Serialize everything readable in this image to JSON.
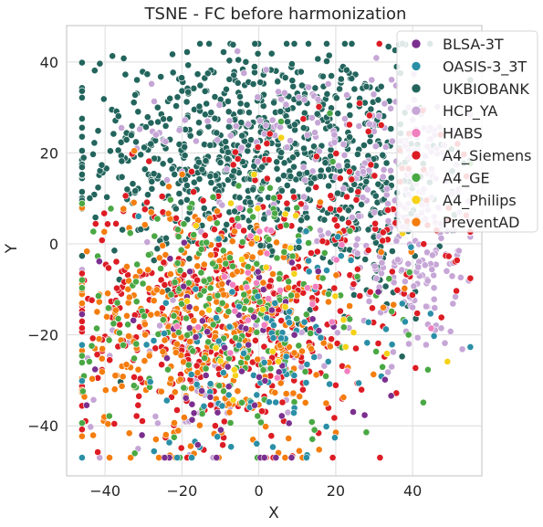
{
  "chart_data": {
    "type": "scatter",
    "title": "TSNE - FC before harmonization",
    "xlabel": "X",
    "ylabel": "Y",
    "xlim": [
      -50,
      58
    ],
    "ylim": [
      -51,
      48
    ],
    "xticks": [
      -40,
      -20,
      0,
      20,
      40
    ],
    "yticks": [
      -40,
      -20,
      0,
      20,
      40
    ],
    "xtick_labels": [
      "−40",
      "−20",
      "0",
      "20",
      "40"
    ],
    "ytick_labels": [
      "−40",
      "−20",
      "0",
      "20",
      "40"
    ],
    "grid": true,
    "legend_position": "top-right",
    "series": [
      {
        "name": "BLSA-3T",
        "color": "#7b2f8e",
        "count": 70,
        "clusters": [
          {
            "cx": -5,
            "cy": -25,
            "sx": 18,
            "sy": 12,
            "w": 1
          }
        ]
      },
      {
        "name": "OASIS-3_3T",
        "color": "#2a8fa6",
        "count": 110,
        "clusters": [
          {
            "cx": 0,
            "cy": -25,
            "sx": 20,
            "sy": 13,
            "w": 1
          }
        ]
      },
      {
        "name": "UKBIOBANK",
        "color": "#23655d",
        "count": 900,
        "clusters": [
          {
            "cx": -5,
            "cy": 20,
            "sx": 20,
            "sy": 12,
            "w": 0.78
          },
          {
            "cx": 28,
            "cy": 12,
            "sx": 10,
            "sy": 14,
            "w": 0.22
          }
        ]
      },
      {
        "name": "HCP_YA",
        "color": "#c6a6d6",
        "count": 420,
        "clusters": [
          {
            "cx": 40,
            "cy": 5,
            "sx": 9,
            "sy": 15,
            "w": 0.6
          },
          {
            "cx": 5,
            "cy": 25,
            "sx": 18,
            "sy": 8,
            "w": 0.22
          },
          {
            "cx": -10,
            "cy": -25,
            "sx": 18,
            "sy": 12,
            "w": 0.18
          }
        ]
      },
      {
        "name": "HABS",
        "color": "#f07fbf",
        "count": 30,
        "clusters": [
          {
            "cx": 0,
            "cy": -10,
            "sx": 20,
            "sy": 15,
            "w": 1
          }
        ]
      },
      {
        "name": "A4_Siemens",
        "color": "#dd1c24",
        "count": 520,
        "clusters": [
          {
            "cx": -10,
            "cy": -15,
            "sx": 20,
            "sy": 14,
            "w": 0.85
          },
          {
            "cx": 30,
            "cy": 10,
            "sx": 15,
            "sy": 12,
            "w": 0.15
          }
        ]
      },
      {
        "name": "A4_GE",
        "color": "#4aa844",
        "count": 240,
        "clusters": [
          {
            "cx": -8,
            "cy": -15,
            "sx": 20,
            "sy": 15,
            "w": 1
          }
        ]
      },
      {
        "name": "A4_Philips",
        "color": "#f5d218",
        "count": 30,
        "clusters": [
          {
            "cx": 0,
            "cy": -15,
            "sx": 20,
            "sy": 15,
            "w": 1
          }
        ]
      },
      {
        "name": "PreventAD",
        "color": "#f47d0e",
        "count": 380,
        "clusters": [
          {
            "cx": -12,
            "cy": -18,
            "sx": 18,
            "sy": 14,
            "w": 1
          }
        ]
      }
    ]
  }
}
